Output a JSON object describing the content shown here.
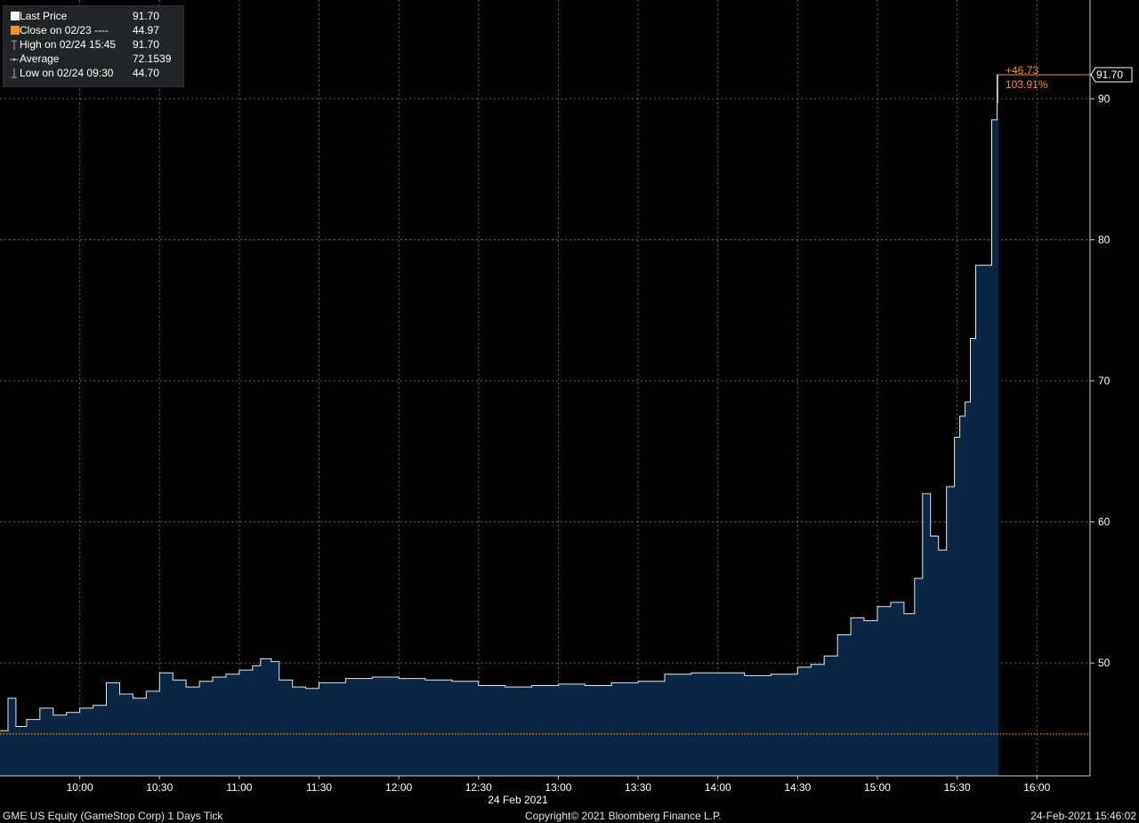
{
  "colors": {
    "background": "#000000",
    "area_fill": "#0b2545",
    "price_line": "#e8e8e8",
    "close_line": "#f7931e",
    "grid": "#8a8a8a",
    "axis_text": "#ffffff",
    "annotation": "#f7931e"
  },
  "legend": {
    "items": [
      {
        "icon": "white-square-icon",
        "label": "Last Price",
        "value": "91.70"
      },
      {
        "icon": "orange-square-icon",
        "label": "Close on 02/23 ----",
        "value": "44.97"
      },
      {
        "icon": "high-marker-icon",
        "label": "High on 02/24 15:45",
        "value": "91.70"
      },
      {
        "icon": "average-marker-icon",
        "label": "Average",
        "value": "72.1539"
      },
      {
        "icon": "low-marker-icon",
        "label": "Low on 02/24 09:30",
        "value": "44.70"
      }
    ]
  },
  "footer": {
    "left": "GME US Equity (GameStop Corp) 1 Days  Tick",
    "center": "Copyright© 2021 Bloomberg Finance L.P.",
    "right": "24-Feb-2021 15:46:02"
  },
  "chart_data": {
    "type": "area",
    "title": "",
    "xlabel": "24 Feb 2021",
    "ylabel": "",
    "x_ticks": [
      "10:00",
      "10:30",
      "11:00",
      "11:30",
      "12:00",
      "12:30",
      "13:00",
      "13:30",
      "14:00",
      "14:30",
      "15:00",
      "15:30",
      "16:00"
    ],
    "y_ticks": [
      50,
      60,
      70,
      80,
      90
    ],
    "xlim": [
      "09:30",
      "16:20"
    ],
    "ylim": [
      42,
      97
    ],
    "grid": true,
    "reference_line": {
      "label": "Close on 02/23",
      "value": 44.97,
      "style": "dotted"
    },
    "last_price_label": "91.70",
    "change_annotation": {
      "change": "+46.73",
      "percent": "103.91%"
    },
    "series": [
      {
        "name": "Last Price",
        "x": [
          "09:30",
          "09:33",
          "09:36",
          "09:40",
          "09:45",
          "09:50",
          "09:55",
          "10:00",
          "10:05",
          "10:10",
          "10:15",
          "10:20",
          "10:25",
          "10:30",
          "10:35",
          "10:40",
          "10:45",
          "10:50",
          "10:55",
          "11:00",
          "11:05",
          "11:08",
          "11:12",
          "11:15",
          "11:20",
          "11:25",
          "11:30",
          "11:40",
          "11:50",
          "12:00",
          "12:10",
          "12:20",
          "12:30",
          "12:40",
          "12:50",
          "13:00",
          "13:10",
          "13:20",
          "13:30",
          "13:40",
          "13:50",
          "14:00",
          "14:10",
          "14:20",
          "14:30",
          "14:35",
          "14:40",
          "14:45",
          "14:50",
          "14:55",
          "15:00",
          "15:05",
          "15:10",
          "15:14",
          "15:17",
          "15:20",
          "15:23",
          "15:26",
          "15:29",
          "15:31",
          "15:33",
          "15:35",
          "15:37",
          "15:39",
          "15:41",
          "15:43",
          "15:45"
        ],
        "values": [
          45.2,
          47.5,
          45.5,
          46.0,
          46.8,
          46.3,
          46.5,
          46.8,
          47.0,
          48.6,
          47.8,
          47.5,
          48.0,
          49.3,
          48.8,
          48.3,
          48.7,
          49.0,
          49.2,
          49.5,
          49.8,
          50.3,
          50.1,
          48.8,
          48.3,
          48.2,
          48.6,
          48.9,
          49.0,
          48.9,
          48.8,
          48.7,
          48.4,
          48.3,
          48.4,
          48.5,
          48.4,
          48.6,
          48.7,
          49.2,
          49.3,
          49.3,
          49.1,
          49.2,
          49.7,
          49.9,
          50.5,
          52.0,
          53.2,
          53.0,
          54.0,
          54.3,
          53.5,
          56.0,
          62.0,
          59.0,
          58.0,
          62.5,
          66.0,
          67.5,
          68.5,
          73.0,
          78.2,
          78.2,
          78.2,
          88.5,
          91.7
        ]
      }
    ]
  }
}
